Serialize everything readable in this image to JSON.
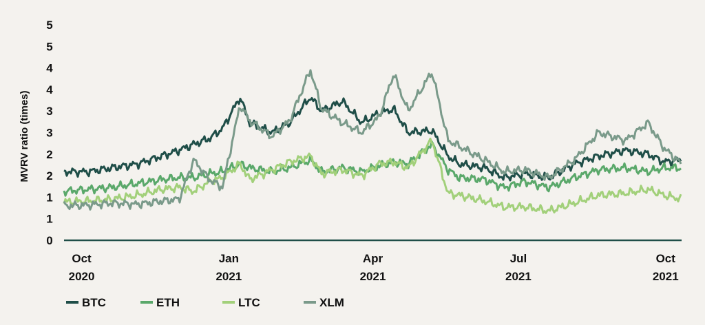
{
  "chart_data": {
    "type": "line",
    "title": "",
    "ylabel": "MVRV ratio (times)",
    "xlabel": "",
    "grid": false,
    "legend_position": "bottom-left",
    "ylim": [
      0,
      5.5
    ],
    "y_tick_labels": [
      "0",
      "1",
      "1",
      "2",
      "2",
      "3",
      "3",
      "4",
      "4",
      "5",
      "5"
    ],
    "x_tick_labels": [
      {
        "line1": "Oct",
        "line2": "2020"
      },
      {
        "line1": "Jan",
        "line2": "2021"
      },
      {
        "line1": "Apr",
        "line2": "2021"
      },
      {
        "line1": "Jul",
        "line2": "2021"
      },
      {
        "line1": "Oct",
        "line2": "2021"
      }
    ],
    "x_tick_dates": [
      "2020-10-01",
      "2021-01-01",
      "2021-04-01",
      "2021-07-01",
      "2021-10-01"
    ],
    "x_range": [
      "2020-09-20",
      "2021-10-11"
    ],
    "series": [
      {
        "name": "BTC",
        "color": "#1f4e48",
        "points": [
          [
            "2020-09-20",
            1.75
          ],
          [
            "2020-10-05",
            1.75
          ],
          [
            "2020-10-20",
            1.85
          ],
          [
            "2020-11-05",
            1.95
          ],
          [
            "2020-11-20",
            2.15
          ],
          [
            "2020-12-01",
            2.3
          ],
          [
            "2020-12-10",
            2.45
          ],
          [
            "2020-12-20",
            2.6
          ],
          [
            "2020-12-28",
            2.85
          ],
          [
            "2021-01-08",
            3.65
          ],
          [
            "2021-01-14",
            3.0
          ],
          [
            "2021-01-28",
            2.75
          ],
          [
            "2021-02-08",
            3.0
          ],
          [
            "2021-02-21",
            3.65
          ],
          [
            "2021-02-28",
            3.3
          ],
          [
            "2021-03-13",
            3.55
          ],
          [
            "2021-03-25",
            3.0
          ],
          [
            "2021-04-05",
            3.25
          ],
          [
            "2021-04-14",
            3.35
          ],
          [
            "2021-04-23",
            2.75
          ],
          [
            "2021-05-08",
            2.8
          ],
          [
            "2021-05-18",
            2.15
          ],
          [
            "2021-05-25",
            1.95
          ],
          [
            "2021-06-10",
            1.85
          ],
          [
            "2021-06-22",
            1.6
          ],
          [
            "2021-07-05",
            1.7
          ],
          [
            "2021-07-20",
            1.6
          ],
          [
            "2021-08-05",
            1.95
          ],
          [
            "2021-08-20",
            2.15
          ],
          [
            "2021-09-06",
            2.3
          ],
          [
            "2021-09-20",
            2.2
          ],
          [
            "2021-09-30",
            2.0
          ],
          [
            "2021-10-11",
            2.05
          ]
        ]
      },
      {
        "name": "ETH",
        "color": "#5aa86a",
        "points": [
          [
            "2020-09-20",
            1.25
          ],
          [
            "2020-10-05",
            1.3
          ],
          [
            "2020-10-20",
            1.35
          ],
          [
            "2020-11-05",
            1.45
          ],
          [
            "2020-11-20",
            1.55
          ],
          [
            "2020-12-01",
            1.6
          ],
          [
            "2020-12-10",
            1.6
          ],
          [
            "2020-12-20",
            1.7
          ],
          [
            "2020-12-28",
            1.75
          ],
          [
            "2021-01-08",
            1.95
          ],
          [
            "2021-01-14",
            1.85
          ],
          [
            "2021-01-28",
            1.75
          ],
          [
            "2021-02-08",
            1.85
          ],
          [
            "2021-02-21",
            2.05
          ],
          [
            "2021-02-28",
            1.75
          ],
          [
            "2021-03-13",
            1.85
          ],
          [
            "2021-03-25",
            1.75
          ],
          [
            "2021-04-05",
            1.9
          ],
          [
            "2021-04-14",
            2.0
          ],
          [
            "2021-04-23",
            1.95
          ],
          [
            "2021-05-08",
            2.45
          ],
          [
            "2021-05-18",
            1.8
          ],
          [
            "2021-05-25",
            1.6
          ],
          [
            "2021-06-10",
            1.55
          ],
          [
            "2021-06-22",
            1.35
          ],
          [
            "2021-07-05",
            1.5
          ],
          [
            "2021-07-20",
            1.35
          ],
          [
            "2021-08-05",
            1.6
          ],
          [
            "2021-08-20",
            1.8
          ],
          [
            "2021-09-06",
            1.85
          ],
          [
            "2021-09-20",
            1.75
          ],
          [
            "2021-09-30",
            1.85
          ],
          [
            "2021-10-11",
            1.85
          ]
        ]
      },
      {
        "name": "LTC",
        "color": "#a2d07a",
        "points": [
          [
            "2020-09-20",
            0.98
          ],
          [
            "2020-10-05",
            1.0
          ],
          [
            "2020-10-20",
            1.05
          ],
          [
            "2020-11-05",
            1.15
          ],
          [
            "2020-11-20",
            1.3
          ],
          [
            "2020-12-01",
            1.35
          ],
          [
            "2020-12-10",
            1.25
          ],
          [
            "2020-12-20",
            1.5
          ],
          [
            "2020-12-28",
            1.6
          ],
          [
            "2021-01-08",
            1.95
          ],
          [
            "2021-01-14",
            1.55
          ],
          [
            "2021-01-28",
            1.8
          ],
          [
            "2021-02-08",
            2.0
          ],
          [
            "2021-02-21",
            2.15
          ],
          [
            "2021-02-28",
            1.7
          ],
          [
            "2021-03-13",
            1.8
          ],
          [
            "2021-03-25",
            1.65
          ],
          [
            "2021-04-05",
            1.95
          ],
          [
            "2021-04-14",
            2.0
          ],
          [
            "2021-04-23",
            1.85
          ],
          [
            "2021-05-08",
            2.55
          ],
          [
            "2021-05-18",
            1.2
          ],
          [
            "2021-05-25",
            1.15
          ],
          [
            "2021-06-10",
            1.0
          ],
          [
            "2021-06-22",
            0.85
          ],
          [
            "2021-07-05",
            0.85
          ],
          [
            "2021-07-20",
            0.75
          ],
          [
            "2021-08-05",
            0.95
          ],
          [
            "2021-08-20",
            1.15
          ],
          [
            "2021-09-06",
            1.2
          ],
          [
            "2021-09-20",
            1.3
          ],
          [
            "2021-09-30",
            1.15
          ],
          [
            "2021-10-11",
            1.05
          ]
        ]
      },
      {
        "name": "XLM",
        "color": "#7a9a8a",
        "points": [
          [
            "2020-09-20",
            0.88
          ],
          [
            "2020-10-05",
            0.9
          ],
          [
            "2020-10-20",
            0.95
          ],
          [
            "2020-11-05",
            0.92
          ],
          [
            "2020-11-20",
            1.0
          ],
          [
            "2020-12-01",
            1.05
          ],
          [
            "2020-12-10",
            2.05
          ],
          [
            "2020-12-20",
            1.55
          ],
          [
            "2020-12-28",
            1.35
          ],
          [
            "2021-01-08",
            3.45
          ],
          [
            "2021-01-14",
            3.05
          ],
          [
            "2021-01-28",
            2.65
          ],
          [
            "2021-02-08",
            3.05
          ],
          [
            "2021-02-21",
            4.35
          ],
          [
            "2021-02-28",
            3.35
          ],
          [
            "2021-03-13",
            3.0
          ],
          [
            "2021-03-25",
            2.75
          ],
          [
            "2021-04-05",
            3.15
          ],
          [
            "2021-04-14",
            4.25
          ],
          [
            "2021-04-23",
            3.3
          ],
          [
            "2021-05-08",
            4.3
          ],
          [
            "2021-05-18",
            2.55
          ],
          [
            "2021-05-25",
            2.4
          ],
          [
            "2021-06-10",
            2.05
          ],
          [
            "2021-06-22",
            1.75
          ],
          [
            "2021-07-05",
            1.8
          ],
          [
            "2021-07-20",
            1.6
          ],
          [
            "2021-08-05",
            2.05
          ],
          [
            "2021-08-20",
            2.75
          ],
          [
            "2021-09-06",
            2.55
          ],
          [
            "2021-09-20",
            3.0
          ],
          [
            "2021-09-30",
            2.35
          ],
          [
            "2021-10-11",
            1.95
          ]
        ]
      }
    ]
  }
}
